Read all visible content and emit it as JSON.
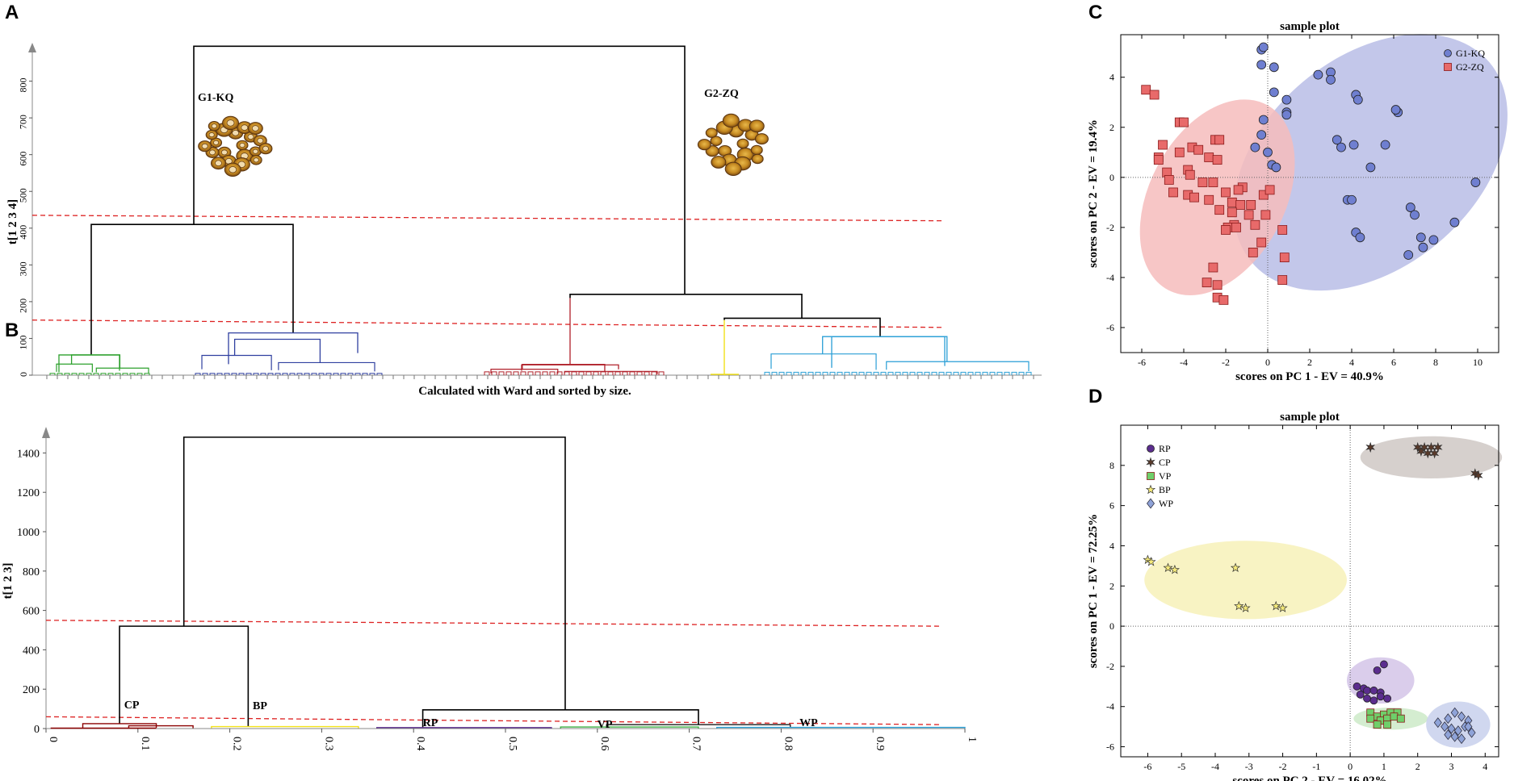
{
  "panels": {
    "a": "A",
    "b": "B",
    "c": "C",
    "d": "D"
  },
  "chart_data": [
    {
      "id": "A",
      "type": "dendrogram",
      "ylabel": "t[1 2 3 4]",
      "ylim": [
        0,
        900
      ],
      "yticks": [
        0,
        100,
        200,
        300,
        400,
        500,
        600,
        700,
        800
      ],
      "caption": "Calculated with Ward and sorted by size.",
      "group_labels": [
        "G1-KQ",
        "G2-ZQ"
      ],
      "cut_lines": [
        [
          435,
          420
        ],
        [
          150,
          130
        ]
      ],
      "merges": {
        "root": 895,
        "g1": 410,
        "g2": 220,
        "g2_sub": 155,
        "green": 55,
        "blue": 115,
        "red": 210,
        "yellow": 150,
        "cyan": 105
      },
      "cluster_colors": {
        "green": "#2ca02c",
        "blue": "#3040a0",
        "red": "#b0202a",
        "yellow": "#f2e21a",
        "cyan": "#2a9fd6"
      }
    },
    {
      "id": "B",
      "type": "dendrogram",
      "ylabel": "t[1 2 3]",
      "ylim": [
        0,
        1500
      ],
      "yticks": [
        0,
        200,
        400,
        600,
        800,
        1000,
        1200,
        1400
      ],
      "xticks": [
        0,
        0.1,
        0.2,
        0.3,
        0.4,
        0.5,
        0.6,
        0.7,
        0.8,
        0.9,
        1
      ],
      "group_labels": [
        "CP",
        "BP",
        "RP",
        "VP",
        "WP"
      ],
      "cut_lines": [
        [
          550,
          520
        ],
        [
          60,
          20
        ]
      ],
      "merges": {
        "root": 1480,
        "left": 520,
        "right": 95,
        "cp": 25,
        "bp": 10,
        "rp": 5,
        "vp_wp": 20
      },
      "cluster_colors": {
        "cp": "#8b0000",
        "bp": "#f2e21a",
        "rp": "#5b2d8e",
        "vp": "#3cb043",
        "wp": "#2a9fd6"
      }
    },
    {
      "id": "C",
      "type": "scatter",
      "title": "sample plot",
      "xlabel": "scores on PC 1 - EV = 40.9%",
      "ylabel": "scores on PC 2 - EV = 19.4%",
      "xlim": [
        -7,
        11
      ],
      "ylim": [
        -7,
        5.7
      ],
      "xticks": [
        -6,
        -4,
        -2,
        0,
        2,
        4,
        6,
        8,
        10
      ],
      "yticks": [
        -6,
        -4,
        -2,
        0,
        2,
        4
      ],
      "series": [
        {
          "name": "G1-KQ",
          "marker": "circle",
          "color": "#6f7fd0",
          "ellipse": {
            "cx": 4.9,
            "cy": 0.6,
            "rx": 7.4,
            "ry": 4.2,
            "angle_deg": -40,
            "color": "#b9bde6"
          },
          "points": [
            [
              -0.3,
              5.1
            ],
            [
              -0.2,
              5.2
            ],
            [
              -0.3,
              4.5
            ],
            [
              0.3,
              4.4
            ],
            [
              2.4,
              4.1
            ],
            [
              3.0,
              4.2
            ],
            [
              3.0,
              3.9
            ],
            [
              0.3,
              3.4
            ],
            [
              0.9,
              3.1
            ],
            [
              0.9,
              2.6
            ],
            [
              0.9,
              2.5
            ],
            [
              4.2,
              3.3
            ],
            [
              4.3,
              3.1
            ],
            [
              6.2,
              2.6
            ],
            [
              6.1,
              2.7
            ],
            [
              -0.2,
              2.3
            ],
            [
              -0.3,
              1.7
            ],
            [
              -0.6,
              1.2
            ],
            [
              0.0,
              1.0
            ],
            [
              3.3,
              1.5
            ],
            [
              3.5,
              1.2
            ],
            [
              4.1,
              1.3
            ],
            [
              5.6,
              1.3
            ],
            [
              0.2,
              0.5
            ],
            [
              0.4,
              0.4
            ],
            [
              4.9,
              0.4
            ],
            [
              9.9,
              -0.2
            ],
            [
              3.8,
              -0.9
            ],
            [
              4.0,
              -0.9
            ],
            [
              6.8,
              -1.2
            ],
            [
              7.0,
              -1.5
            ],
            [
              8.9,
              -1.8
            ],
            [
              4.2,
              -2.2
            ],
            [
              4.4,
              -2.4
            ],
            [
              7.3,
              -2.4
            ],
            [
              7.9,
              -2.5
            ],
            [
              7.4,
              -2.8
            ],
            [
              6.7,
              -3.1
            ]
          ]
        },
        {
          "name": "G2-ZQ",
          "marker": "square",
          "color": "#e86a6a",
          "ellipse": {
            "cx": -2.4,
            "cy": -0.8,
            "rx": 5.0,
            "ry": 2.7,
            "angle_deg": -62,
            "color": "#f6bcbc"
          },
          "points": [
            [
              -5.8,
              3.5
            ],
            [
              -5.4,
              3.3
            ],
            [
              -4.2,
              2.2
            ],
            [
              -4.0,
              2.2
            ],
            [
              -2.5,
              1.5
            ],
            [
              -2.3,
              1.5
            ],
            [
              -5.0,
              1.3
            ],
            [
              -5.2,
              0.8
            ],
            [
              -5.2,
              0.7
            ],
            [
              -4.2,
              1.0
            ],
            [
              -3.6,
              1.2
            ],
            [
              -3.3,
              1.1
            ],
            [
              -2.8,
              0.8
            ],
            [
              -2.4,
              0.7
            ],
            [
              -3.8,
              0.3
            ],
            [
              -3.7,
              0.1
            ],
            [
              -4.8,
              0.2
            ],
            [
              -4.7,
              -0.1
            ],
            [
              -4.5,
              -0.6
            ],
            [
              -3.8,
              -0.7
            ],
            [
              -3.1,
              -0.2
            ],
            [
              -2.6,
              -0.2
            ],
            [
              -2.0,
              -0.6
            ],
            [
              -1.2,
              -0.4
            ],
            [
              -1.4,
              -0.5
            ],
            [
              -0.2,
              -0.7
            ],
            [
              0.1,
              -0.5
            ],
            [
              -1.7,
              -1.0
            ],
            [
              -1.3,
              -1.1
            ],
            [
              -0.8,
              -1.1
            ],
            [
              -3.5,
              -0.8
            ],
            [
              -2.8,
              -0.9
            ],
            [
              -2.3,
              -1.3
            ],
            [
              -1.7,
              -1.4
            ],
            [
              -0.9,
              -1.5
            ],
            [
              -1.6,
              -1.9
            ],
            [
              -1.9,
              -2.0
            ],
            [
              -2.0,
              -2.1
            ],
            [
              -1.5,
              -2.0
            ],
            [
              -0.6,
              -1.9
            ],
            [
              -0.1,
              -1.5
            ],
            [
              0.7,
              -2.1
            ],
            [
              -0.3,
              -2.6
            ],
            [
              -0.7,
              -3.0
            ],
            [
              -2.6,
              -3.6
            ],
            [
              0.8,
              -3.2
            ],
            [
              -2.9,
              -4.2
            ],
            [
              -2.4,
              -4.3
            ],
            [
              -2.4,
              -4.8
            ],
            [
              -2.1,
              -4.9
            ],
            [
              0.7,
              -4.1
            ]
          ]
        }
      ]
    },
    {
      "id": "D",
      "type": "scatter",
      "title": "sample plot",
      "xlabel": "scores on PC 2 - EV = 16.02%",
      "ylabel": "scores on PC 1 - EV = 72.25%",
      "xlim": [
        -6.8,
        4.4
      ],
      "ylim": [
        -6.5,
        10
      ],
      "xticks": [
        -6,
        -5,
        -4,
        -3,
        -2,
        -1,
        0,
        1,
        2,
        3,
        4
      ],
      "yticks": [
        -6,
        -4,
        -2,
        0,
        2,
        4,
        6,
        8
      ],
      "series": [
        {
          "name": "RP",
          "marker": "circle",
          "color": "#5b2d8e",
          "ellipse": {
            "cx": 0.9,
            "cy": -2.7,
            "rx": 1.0,
            "ry": 1.15,
            "angle_deg": 0,
            "color": "#d4c4e8"
          },
          "points": [
            [
              1.0,
              -1.9
            ],
            [
              0.8,
              -2.2
            ],
            [
              0.2,
              -3.0
            ],
            [
              0.4,
              -3.1
            ],
            [
              0.5,
              -3.2
            ],
            [
              0.7,
              -3.2
            ],
            [
              0.9,
              -3.3
            ],
            [
              0.3,
              -3.4
            ],
            [
              0.5,
              -3.6
            ],
            [
              0.9,
              -3.5
            ],
            [
              1.1,
              -3.6
            ],
            [
              0.7,
              -3.7
            ]
          ]
        },
        {
          "name": "CP",
          "marker": "star6",
          "color": "#5a3a2a",
          "ellipse": {
            "cx": 2.4,
            "cy": 8.4,
            "rx": 2.1,
            "ry": 1.05,
            "angle_deg": 0,
            "color": "#cfc8c4"
          },
          "points": [
            [
              0.6,
              8.9
            ],
            [
              0.6,
              8.9
            ],
            [
              2.0,
              8.9
            ],
            [
              2.2,
              8.9
            ],
            [
              2.4,
              8.9
            ],
            [
              2.6,
              8.9
            ],
            [
              2.3,
              8.6
            ],
            [
              2.5,
              8.6
            ],
            [
              2.1,
              8.7
            ],
            [
              3.7,
              7.6
            ],
            [
              3.8,
              7.5
            ]
          ]
        },
        {
          "name": "VP",
          "marker": "square",
          "color": "#6fcf6a",
          "ellipse": {
            "cx": 1.2,
            "cy": -4.6,
            "rx": 1.1,
            "ry": 0.55,
            "angle_deg": 0,
            "color": "#cdeac8"
          },
          "points": [
            [
              0.6,
              -4.3
            ],
            [
              0.8,
              -4.5
            ],
            [
              1.0,
              -4.4
            ],
            [
              1.2,
              -4.3
            ],
            [
              1.4,
              -4.3
            ],
            [
              0.6,
              -4.6
            ],
            [
              0.9,
              -4.7
            ],
            [
              1.1,
              -4.6
            ],
            [
              1.3,
              -4.5
            ],
            [
              1.5,
              -4.6
            ],
            [
              0.8,
              -4.9
            ],
            [
              1.1,
              -4.9
            ]
          ]
        },
        {
          "name": "BP",
          "marker": "star5",
          "color": "#f5ea7a",
          "ellipse": {
            "cx": -3.1,
            "cy": 2.3,
            "rx": 3.0,
            "ry": 1.95,
            "angle_deg": 0,
            "color": "#f7f1b8"
          },
          "points": [
            [
              -6.0,
              3.3
            ],
            [
              -5.9,
              3.2
            ],
            [
              -5.4,
              2.9
            ],
            [
              -5.2,
              2.8
            ],
            [
              -3.4,
              2.9
            ],
            [
              -3.3,
              1.0
            ],
            [
              -3.1,
              0.9
            ],
            [
              -2.2,
              1.0
            ],
            [
              -2.0,
              0.9
            ]
          ]
        },
        {
          "name": "WP",
          "marker": "diamond",
          "color": "#8fa3d8",
          "ellipse": {
            "cx": 3.2,
            "cy": -4.9,
            "rx": 0.95,
            "ry": 1.15,
            "angle_deg": 0,
            "color": "#c8d0ec"
          },
          "points": [
            [
              2.6,
              -4.8
            ],
            [
              2.9,
              -4.6
            ],
            [
              3.1,
              -4.3
            ],
            [
              3.3,
              -4.5
            ],
            [
              3.5,
              -4.7
            ],
            [
              2.8,
              -5.0
            ],
            [
              3.0,
              -5.1
            ],
            [
              3.2,
              -5.2
            ],
            [
              3.4,
              -5.0
            ],
            [
              2.9,
              -5.4
            ],
            [
              3.1,
              -5.5
            ],
            [
              3.3,
              -5.6
            ],
            [
              3.6,
              -5.3
            ],
            [
              3.5,
              -5.0
            ]
          ]
        }
      ]
    }
  ]
}
